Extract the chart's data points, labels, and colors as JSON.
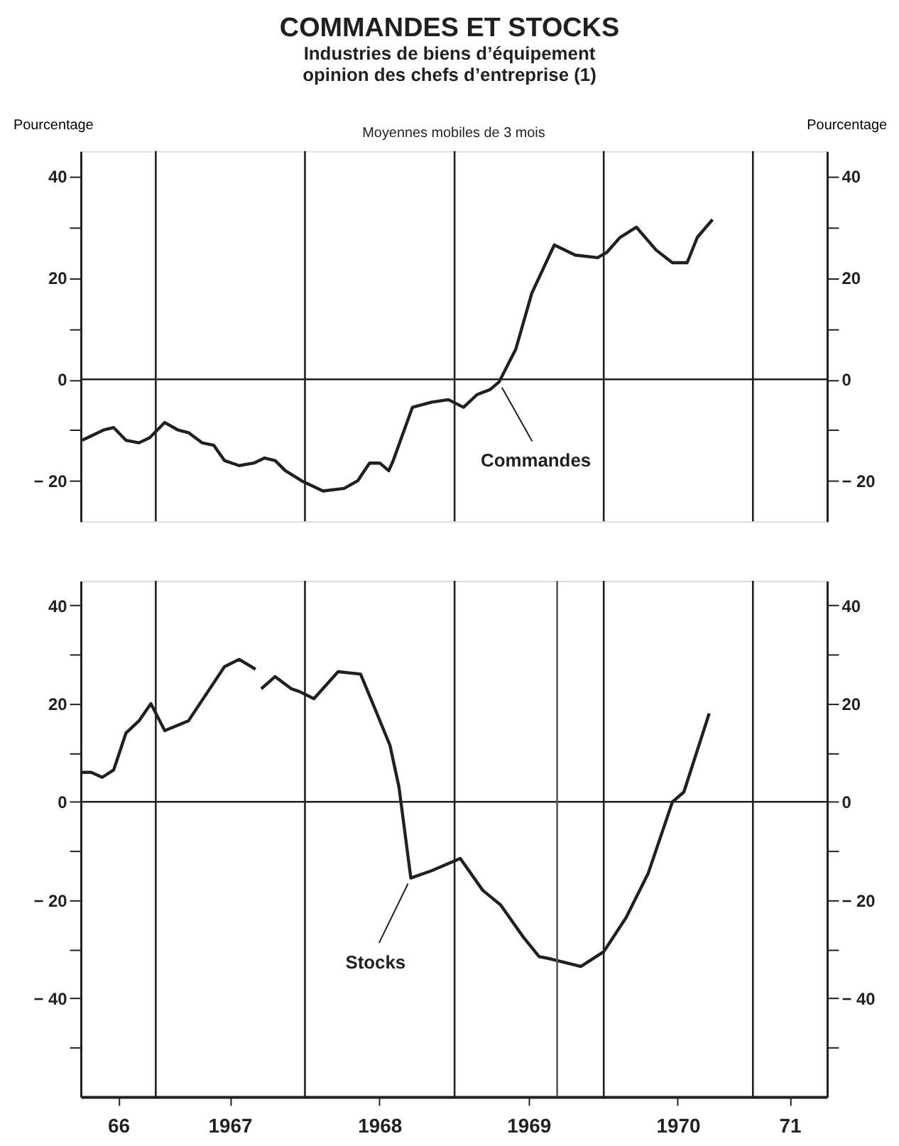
{
  "chart_data": [
    {
      "type": "line",
      "title": "COMMANDES ET STOCKS",
      "subtitle": "Industries de biens d’équipement\nopinion des chefs d’entreprise (1)",
      "ylabel": "Pourcentage",
      "y2label": "Pourcentage",
      "annotations": [
        "Moyennes mobiles de 3 mois",
        {
          "text": "Commandes",
          "x": "1969-04-20",
          "y": -0.5
        }
      ],
      "xlim": [
        "1966-07-01",
        "1971-07-01"
      ],
      "ylim": [
        -28,
        45
      ],
      "y2lim": [
        -28,
        45
      ],
      "tick_labels": "y",
      "yticks": [
        {
          "value": -20,
          "label": "− 20"
        },
        {
          "value": -10,
          "label": null
        },
        0,
        {
          "value": 10,
          "label": null
        },
        20,
        {
          "value": 30,
          "label": null
        },
        40
      ],
      "y2ticks": [
        {
          "value": -20,
          "label": "− 20"
        },
        {
          "value": -10,
          "label": null
        },
        0,
        {
          "value": 10,
          "label": null
        },
        20,
        {
          "value": 30,
          "label": null
        },
        40
      ],
      "ref_lines": [
        {
          "axis": "y2",
          "value": 0,
          "color": "#231f20"
        },
        {
          "axis": "x",
          "value": "1967-01-01",
          "color": "#231f20"
        },
        {
          "axis": "x",
          "value": "1968-01-01",
          "color": "#231f20"
        },
        {
          "axis": "x",
          "value": "1969-01-01",
          "color": "#231f20"
        },
        {
          "axis": "x",
          "value": "1970-01-01",
          "color": "#231f20"
        },
        {
          "axis": "x",
          "value": "1971-01-01",
          "color": "#231f20"
        }
      ],
      "series": [
        {
          "color": "#231f20",
          "x": [
            "1966-07-05",
            "1966-08-26",
            "1966-09-20",
            "1966-10-20",
            "1966-11-21",
            "1966-12-17",
            "1967-01-23",
            "1967-02-25",
            "1967-03-22",
            "1967-04-24",
            "1967-05-23",
            "1967-06-18",
            "1967-07-24",
            "1967-08-29",
            "1967-09-24",
            "1967-10-20",
            "1967-11-14",
            "1967-12-24",
            "1968-02-14",
            "1968-04-06",
            "1968-05-09",
            "1968-06-07",
            "1968-07-02",
            "1968-07-24",
            "1968-08-04",
            "1968-09-20",
            "1968-11-06",
            "1968-12-17",
            "1969-01-23",
            "1969-02-25",
            "1969-03-29",
            "1969-04-20",
            "1969-05-31",
            "1969-07-09",
            "1969-09-02",
            "1969-10-23",
            "1969-12-17",
            "1970-01-08",
            "1970-02-10",
            "1970-03-22",
            "1970-05-09",
            "1970-06-18",
            "1970-07-24",
            "1970-08-18",
            "1970-09-24"
          ],
          "values": [
            -12,
            -10,
            -9.5,
            -12,
            -12.5,
            -11.5,
            -8.5,
            -10,
            -10.5,
            -12.5,
            -13,
            -16,
            -17,
            -16.5,
            -15.5,
            -16,
            -18,
            -20,
            -22,
            -21.5,
            -20,
            -16.5,
            -16.5,
            -18,
            -16,
            -5.5,
            -4.5,
            -4,
            -5.5,
            -3,
            -2,
            -0.5,
            6,
            17,
            26.5,
            24.5,
            24,
            25,
            28,
            30,
            25.5,
            23,
            23,
            28,
            31.5
          ]
        }
      ]
    },
    {
      "type": "line",
      "annotations": [
        {
          "text": "Stocks",
          "x": "1968-09-16",
          "y": -15.5
        }
      ],
      "xlim": [
        "1966-07-01",
        "1971-07-01"
      ],
      "ylim": [
        -60,
        45
      ],
      "y2lim": [
        -60,
        45
      ],
      "xticks": [
        {
          "value": "1966-10-01",
          "label": "66"
        },
        {
          "value": "1967-07-01",
          "label": "1967"
        },
        {
          "value": "1968-07-01",
          "label": "1968"
        },
        {
          "value": "1969-07-01",
          "label": "1969"
        },
        {
          "value": "1970-07-01",
          "label": "1970"
        },
        {
          "value": "1971-04-01",
          "label": "71"
        }
      ],
      "yticks": [
        {
          "value": -50,
          "label": null
        },
        {
          "value": -40,
          "label": "− 40"
        },
        {
          "value": -30,
          "label": null
        },
        {
          "value": -20,
          "label": "− 20"
        },
        {
          "value": -10,
          "label": null
        },
        0,
        {
          "value": 10,
          "label": null
        },
        20,
        {
          "value": 30,
          "label": null
        },
        40
      ],
      "y2ticks": [
        {
          "value": -50,
          "label": null
        },
        {
          "value": -40,
          "label": "− 40"
        },
        {
          "value": -30,
          "label": null
        },
        {
          "value": -20,
          "label": "− 20"
        },
        {
          "value": -10,
          "label": null
        },
        0,
        {
          "value": 10,
          "label": null
        },
        20,
        {
          "value": 30,
          "label": null
        },
        40
      ],
      "ref_lines": [
        {
          "axis": "y2",
          "value": 0,
          "color": "#231f20"
        },
        {
          "axis": "x",
          "value": "1967-01-01",
          "color": "#231f20"
        },
        {
          "axis": "x",
          "value": "1968-01-01",
          "color": "#231f20"
        },
        {
          "axis": "x",
          "value": "1969-01-01",
          "color": "#231f20"
        },
        {
          "axis": "x",
          "value": "1970-01-01",
          "color": "#231f20"
        },
        {
          "axis": "x",
          "value": "1971-01-01",
          "color": "#231f20"
        },
        {
          "axis": "x",
          "value": "1969-09-09",
          "color": "#555555"
        }
      ],
      "series": [
        {
          "color": "#231f20",
          "x": [
            "1966-07-05",
            "1966-07-27",
            "1966-08-23",
            "1966-09-20",
            "1966-10-20",
            "1966-11-21",
            "1966-12-20",
            "1967-01-23",
            "1967-03-22",
            "1967-06-18",
            "1967-07-24",
            "1967-09-02",
            "1967-09-09",
            "1967-09-16",
            "1967-10-20",
            "1967-11-29",
            "1967-12-17",
            "1968-01-23",
            "1968-03-22",
            "1968-05-16",
            "1968-06-25",
            "1968-07-27",
            "1968-08-18",
            "1968-09-16",
            "1968-11-06",
            "1969-01-15",
            "1969-03-11",
            "1969-04-24",
            "1969-06-18",
            "1969-07-27",
            "1969-08-26",
            "1969-11-06",
            "1970-01-01",
            "1970-02-25",
            "1970-04-20",
            "1970-06-18",
            "1970-07-16",
            "1970-09-16"
          ],
          "values": [
            6,
            6,
            5,
            6.5,
            14,
            16.5,
            20,
            14.5,
            16.5,
            27.5,
            29,
            27,
            null,
            23,
            25.5,
            23,
            22.5,
            21,
            26.5,
            26,
            18,
            11.5,
            3,
            -15.5,
            -14,
            -11.5,
            -18,
            -21,
            -27.5,
            -31.5,
            -32,
            -33.5,
            -30.5,
            -23.5,
            -14.5,
            0,
            2,
            18
          ]
        }
      ]
    }
  ]
}
